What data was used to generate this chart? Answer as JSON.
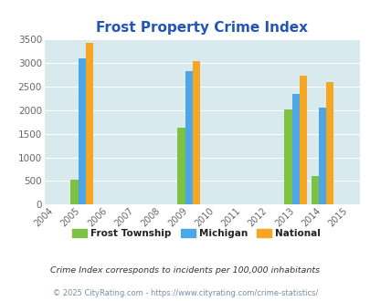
{
  "title": "Frost Property Crime Index",
  "data": {
    "2005": {
      "frost": 520,
      "michigan": 3100,
      "national": 3420
    },
    "2009": {
      "frost": 1620,
      "michigan": 2830,
      "national": 3040
    },
    "2013": {
      "frost": 2020,
      "michigan": 2340,
      "national": 2720
    },
    "2014": {
      "frost": 600,
      "michigan": 2050,
      "national": 2590
    }
  },
  "xticks": [
    2004,
    2005,
    2006,
    2007,
    2008,
    2009,
    2010,
    2011,
    2012,
    2013,
    2014,
    2015
  ],
  "xlim": [
    2003.6,
    2015.4
  ],
  "ylim": [
    0,
    3500
  ],
  "yticks": [
    0,
    500,
    1000,
    1500,
    2000,
    2500,
    3000,
    3500
  ],
  "frost_color": "#7dc242",
  "michigan_color": "#4da6e8",
  "national_color": "#f5a623",
  "bg_color": "#d8eaee",
  "grid_color": "#ffffff",
  "title_color": "#2255bb",
  "tick_color": "#666666",
  "bar_width": 0.28,
  "legend_items": [
    "Frost Township",
    "Michigan",
    "National"
  ],
  "footnote1": "Crime Index corresponds to incidents per 100,000 inhabitants",
  "footnote2": "© 2025 CityRating.com - https://www.cityrating.com/crime-statistics/"
}
